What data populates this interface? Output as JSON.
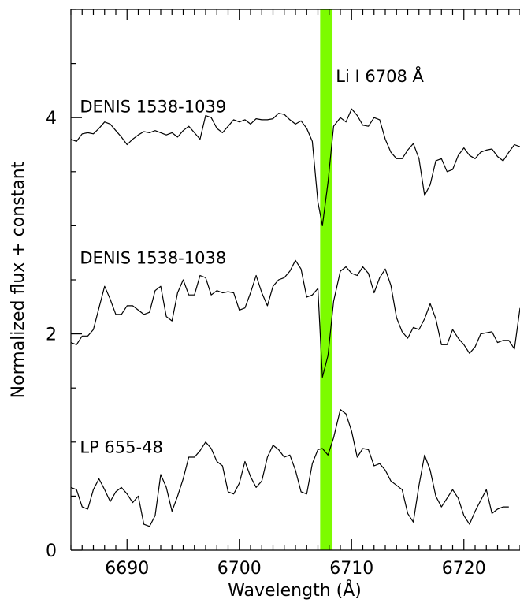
{
  "chart_data": {
    "type": "line",
    "xlabel": "Wavelength (Å)",
    "ylabel": "Normalized flux + constant",
    "xlim": [
      6685,
      6725
    ],
    "ylim": [
      0,
      5
    ],
    "x_ticks": [
      6690,
      6700,
      6710,
      6720
    ],
    "x_tick_labels": [
      "6690",
      "6700",
      "6710",
      "6720"
    ],
    "y_ticks": [
      0,
      2,
      4
    ],
    "y_tick_labels": [
      "0",
      "2",
      "4"
    ],
    "grid": false,
    "highlight_band": {
      "x_range": [
        6707.2,
        6708.3
      ],
      "color": "#7cfc00"
    },
    "annotation": {
      "text": "Li I 6708 Å",
      "x": 6708.6,
      "y": 4.33
    },
    "series": [
      {
        "name": "DENIS 1538-1039",
        "label_pos": {
          "x": 6685.8,
          "y": 4.05
        },
        "x": [
          6685.0,
          6685.5,
          6686.0,
          6686.5,
          6687.0,
          6687.5,
          6688.0,
          6688.5,
          6689.0,
          6689.5,
          6690.0,
          6690.5,
          6691.0,
          6691.5,
          6692.0,
          6692.5,
          6693.0,
          6693.5,
          6694.0,
          6694.5,
          6695.0,
          6695.5,
          6696.0,
          6696.5,
          6697.0,
          6697.5,
          6698.0,
          6698.5,
          6699.0,
          6699.5,
          6700.0,
          6700.5,
          6701.0,
          6701.5,
          6702.0,
          6702.5,
          6703.0,
          6703.5,
          6704.0,
          6704.5,
          6705.0,
          6705.5,
          6706.0,
          6706.5,
          6707.0,
          6707.4,
          6707.9,
          6708.4,
          6709.0,
          6709.5,
          6710.0,
          6710.5,
          6711.0,
          6711.5,
          6712.0,
          6712.5,
          6713.0,
          6713.5,
          6714.0,
          6714.5,
          6715.0,
          6715.5,
          6716.0,
          6716.5,
          6717.0,
          6717.5,
          6718.0,
          6718.5,
          6719.0,
          6719.5,
          6720.0,
          6720.5,
          6721.0,
          6721.5,
          6722.0,
          6722.5,
          6723.0,
          6723.5,
          6724.0,
          6724.5,
          6725.0
        ],
        "y": [
          3.8,
          3.78,
          3.85,
          3.86,
          3.85,
          3.9,
          3.96,
          3.94,
          3.88,
          3.82,
          3.75,
          3.8,
          3.84,
          3.87,
          3.86,
          3.88,
          3.86,
          3.84,
          3.86,
          3.82,
          3.88,
          3.92,
          3.86,
          3.8,
          4.02,
          4.0,
          3.9,
          3.86,
          3.92,
          3.98,
          3.96,
          3.98,
          3.94,
          3.99,
          3.98,
          3.98,
          3.99,
          4.04,
          4.03,
          3.98,
          3.94,
          3.97,
          3.9,
          3.78,
          3.22,
          3.0,
          3.4,
          3.92,
          4.0,
          3.96,
          4.08,
          4.02,
          3.93,
          3.92,
          4.0,
          3.98,
          3.8,
          3.68,
          3.62,
          3.62,
          3.7,
          3.76,
          3.62,
          3.28,
          3.38,
          3.6,
          3.62,
          3.5,
          3.52,
          3.65,
          3.72,
          3.65,
          3.62,
          3.68,
          3.7,
          3.71,
          3.64,
          3.6,
          3.68,
          3.75,
          3.73
        ]
      },
      {
        "name": "DENIS 1538-1038",
        "label_pos": {
          "x": 6685.8,
          "y": 2.65
        },
        "x": [
          6685.0,
          6685.5,
          6686.0,
          6686.5,
          6687.0,
          6687.5,
          6688.0,
          6688.5,
          6689.0,
          6689.5,
          6690.0,
          6690.5,
          6691.0,
          6691.5,
          6692.0,
          6692.5,
          6693.0,
          6693.5,
          6694.0,
          6694.5,
          6695.0,
          6695.5,
          6696.0,
          6696.5,
          6697.0,
          6697.5,
          6698.0,
          6698.5,
          6699.0,
          6699.5,
          6700.0,
          6700.5,
          6701.0,
          6701.5,
          6702.0,
          6702.5,
          6703.0,
          6703.5,
          6704.0,
          6704.5,
          6705.0,
          6705.5,
          6706.0,
          6706.5,
          6707.0,
          6707.4,
          6707.9,
          6708.4,
          6709.0,
          6709.5,
          6710.0,
          6710.5,
          6711.0,
          6711.5,
          6712.0,
          6712.5,
          6713.0,
          6713.5,
          6714.0,
          6714.5,
          6715.0,
          6715.5,
          6716.0,
          6716.5,
          6717.0,
          6717.5,
          6718.0,
          6718.5,
          6719.0,
          6719.5,
          6720.0,
          6720.5,
          6721.0,
          6721.5,
          6722.0,
          6722.5,
          6723.0,
          6723.5,
          6724.0,
          6724.5,
          6725.0
        ],
        "y": [
          1.92,
          1.9,
          1.98,
          1.98,
          2.04,
          2.24,
          2.44,
          2.32,
          2.18,
          2.18,
          2.26,
          2.26,
          2.22,
          2.18,
          2.2,
          2.4,
          2.44,
          2.16,
          2.12,
          2.38,
          2.5,
          2.36,
          2.36,
          2.54,
          2.52,
          2.36,
          2.4,
          2.38,
          2.39,
          2.38,
          2.22,
          2.24,
          2.38,
          2.54,
          2.38,
          2.26,
          2.44,
          2.5,
          2.52,
          2.58,
          2.68,
          2.6,
          2.34,
          2.36,
          2.42,
          1.6,
          1.8,
          2.3,
          2.58,
          2.62,
          2.56,
          2.54,
          2.62,
          2.56,
          2.38,
          2.52,
          2.6,
          2.45,
          2.15,
          2.02,
          1.96,
          2.06,
          2.04,
          2.14,
          2.28,
          2.14,
          1.9,
          1.9,
          2.04,
          1.96,
          1.9,
          1.82,
          1.88,
          2.0,
          2.01,
          2.02,
          1.92,
          1.94,
          1.94,
          1.86,
          2.24
        ]
      },
      {
        "name": "LP 655-48",
        "label_pos": {
          "x": 6685.8,
          "y": 0.9
        },
        "x": [
          6685.0,
          6685.5,
          6686.0,
          6686.5,
          6687.0,
          6687.5,
          6688.0,
          6688.5,
          6689.0,
          6689.5,
          6690.0,
          6690.5,
          6691.0,
          6691.5,
          6692.0,
          6692.5,
          6693.0,
          6693.5,
          6694.0,
          6694.5,
          6695.0,
          6695.5,
          6696.0,
          6696.5,
          6697.0,
          6697.5,
          6698.0,
          6698.5,
          6699.0,
          6699.5,
          6700.0,
          6700.5,
          6701.0,
          6701.5,
          6702.0,
          6702.5,
          6703.0,
          6703.5,
          6704.0,
          6704.5,
          6705.0,
          6705.5,
          6706.0,
          6706.5,
          6707.0,
          6707.4,
          6707.9,
          6708.4,
          6709.0,
          6709.5,
          6710.0,
          6710.5,
          6711.0,
          6711.5,
          6712.0,
          6712.5,
          6713.0,
          6713.5,
          6714.0,
          6714.5,
          6715.0,
          6715.5,
          6716.0,
          6716.5,
          6717.0,
          6717.5,
          6718.0,
          6718.5,
          6719.0,
          6719.5,
          6720.0,
          6720.5,
          6721.0,
          6721.5,
          6722.0,
          6722.5,
          6723.0,
          6723.5,
          6724.0
        ],
        "y": [
          0.58,
          0.56,
          0.4,
          0.38,
          0.56,
          0.66,
          0.56,
          0.45,
          0.54,
          0.58,
          0.52,
          0.44,
          0.5,
          0.24,
          0.22,
          0.32,
          0.7,
          0.58,
          0.36,
          0.5,
          0.66,
          0.86,
          0.86,
          0.92,
          1.0,
          0.94,
          0.82,
          0.78,
          0.54,
          0.52,
          0.62,
          0.82,
          0.68,
          0.58,
          0.64,
          0.86,
          0.97,
          0.93,
          0.86,
          0.88,
          0.74,
          0.54,
          0.52,
          0.8,
          0.93,
          0.94,
          0.88,
          1.04,
          1.3,
          1.26,
          1.1,
          0.86,
          0.94,
          0.93,
          0.78,
          0.8,
          0.74,
          0.64,
          0.6,
          0.56,
          0.34,
          0.26,
          0.6,
          0.88,
          0.74,
          0.5,
          0.4,
          0.48,
          0.56,
          0.48,
          0.32,
          0.24,
          0.36,
          0.46,
          0.56,
          0.34,
          0.38,
          0.4,
          0.4
        ]
      }
    ]
  }
}
